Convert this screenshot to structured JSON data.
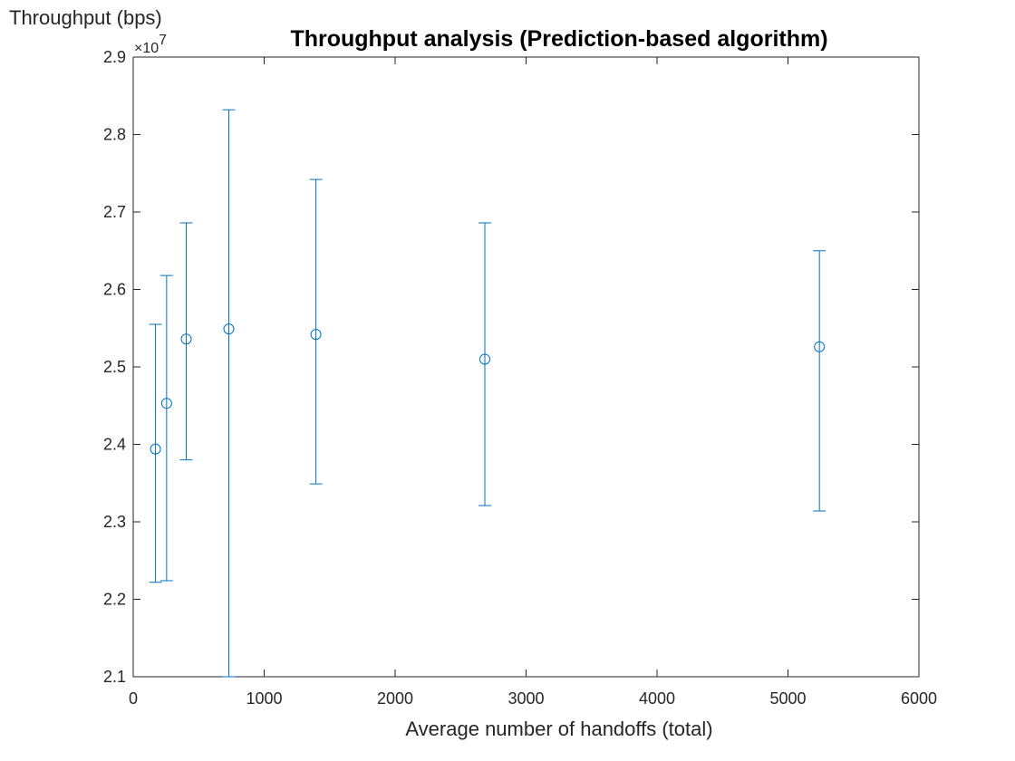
{
  "chart_data": {
    "type": "scatter",
    "title": "Throughput analysis (Prediction-based algorithm)",
    "xlabel": "Average number of handoffs (total)",
    "ylabel": "Throughput (bps)",
    "y_exponent_label": "×10",
    "y_exponent_power": "7",
    "xlim": [
      0,
      6000
    ],
    "ylim": [
      2.1,
      2.9
    ],
    "x_ticks": [
      0,
      1000,
      2000,
      3000,
      4000,
      5000,
      6000
    ],
    "x_tick_labels": [
      "0",
      "1000",
      "2000",
      "3000",
      "4000",
      "5000",
      "6000"
    ],
    "y_ticks": [
      2.1,
      2.2,
      2.3,
      2.4,
      2.5,
      2.6,
      2.7,
      2.8,
      2.9
    ],
    "y_tick_labels": [
      "2.1",
      "2.2",
      "2.3",
      "2.4",
      "2.5",
      "2.6",
      "2.7",
      "2.8",
      "2.9"
    ],
    "grid": false,
    "marker": "circle",
    "series_color": "#0072BD",
    "series": [
      {
        "x": [
          170,
          255,
          405,
          730,
          1395,
          2685,
          5240
        ],
        "y": [
          2.394,
          2.453,
          2.536,
          2.549,
          2.542,
          2.51,
          2.526
        ],
        "lower": [
          2.222,
          2.224,
          2.38,
          2.1,
          2.349,
          2.321,
          2.314
        ],
        "upper": [
          2.555,
          2.618,
          2.686,
          2.832,
          2.742,
          2.686,
          2.65
        ]
      }
    ]
  }
}
